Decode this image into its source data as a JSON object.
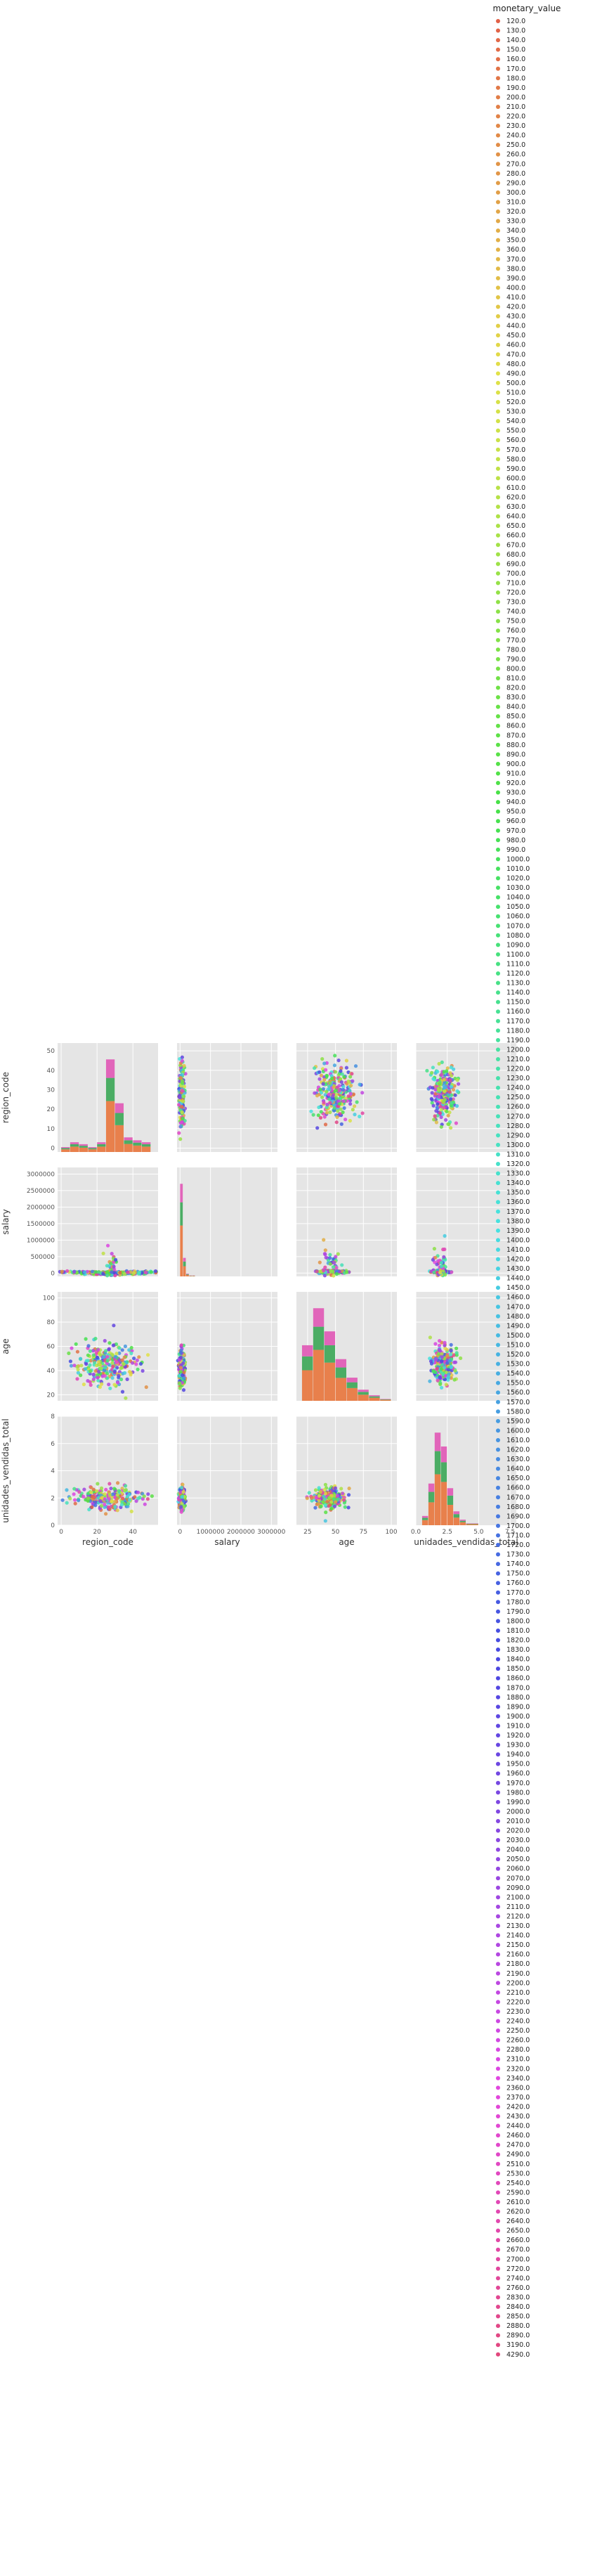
{
  "chart_data": {
    "type": "scatter",
    "title": "",
    "variables": [
      "region_code",
      "salary",
      "age",
      "unidades_vendidas_total"
    ],
    "axes": {
      "region_code": {
        "lim": [
          -2,
          54
        ],
        "ticks": [
          0,
          20,
          40
        ],
        "tick_labels": [
          "0",
          "20",
          "40"
        ],
        "y_ticks": [
          0,
          10,
          20,
          30,
          40,
          50
        ],
        "y_tick_labels": [
          "0",
          "10",
          "20",
          "30",
          "40",
          "50"
        ]
      },
      "salary": {
        "lim": [
          -100000,
          3200000
        ],
        "ticks": [
          0,
          1000000,
          2000000,
          3000000
        ],
        "tick_labels": [
          "0",
          "1000000",
          "2000000",
          "3000000"
        ],
        "y_ticks": [
          0,
          500000,
          1000000,
          1500000,
          2000000,
          2500000,
          3000000
        ],
        "y_tick_labels": [
          "0",
          "500000",
          "1000000",
          "1500000",
          "2000000",
          "2500000",
          "3000000"
        ]
      },
      "age": {
        "lim": [
          15,
          105
        ],
        "ticks": [
          25,
          50,
          75,
          100
        ],
        "tick_labels": [
          "25",
          "50",
          "75",
          "100"
        ],
        "y_ticks": [
          20,
          40,
          60,
          80,
          100
        ],
        "y_tick_labels": [
          "20",
          "40",
          "60",
          "80",
          "100"
        ]
      },
      "unidades_vendidas_total": {
        "lim": [
          0,
          8
        ],
        "ticks": [
          0.0,
          2.5,
          5.0,
          7.5
        ],
        "tick_labels": [
          "0.0",
          "2.5",
          "5.0",
          "7.5"
        ],
        "y_ticks": [
          0,
          2,
          4,
          6,
          8
        ],
        "y_tick_labels": [
          "0",
          "2",
          "4",
          "6",
          "8"
        ]
      }
    },
    "hue": "monetary_value",
    "legend": {
      "title": "monetary_value",
      "placement": "right",
      "entries": [
        "120.0",
        "130.0",
        "140.0",
        "150.0",
        "160.0",
        "170.0",
        "180.0",
        "190.0",
        "200.0",
        "210.0",
        "220.0",
        "230.0",
        "240.0",
        "250.0",
        "260.0",
        "270.0",
        "280.0",
        "290.0",
        "300.0",
        "310.0",
        "320.0",
        "330.0",
        "340.0",
        "350.0",
        "360.0",
        "370.0",
        "380.0",
        "390.0",
        "400.0",
        "410.0",
        "420.0",
        "430.0",
        "440.0",
        "450.0",
        "460.0",
        "470.0",
        "480.0",
        "490.0",
        "500.0",
        "510.0",
        "520.0",
        "530.0",
        "540.0",
        "550.0",
        "560.0",
        "570.0",
        "580.0",
        "590.0",
        "600.0",
        "610.0",
        "620.0",
        "630.0",
        "640.0",
        "650.0",
        "660.0",
        "670.0",
        "680.0",
        "690.0",
        "700.0",
        "710.0",
        "720.0",
        "730.0",
        "740.0",
        "750.0",
        "760.0",
        "770.0",
        "780.0",
        "790.0",
        "800.0",
        "810.0",
        "820.0",
        "830.0",
        "840.0",
        "850.0",
        "860.0",
        "870.0",
        "880.0",
        "890.0",
        "900.0",
        "910.0",
        "920.0",
        "930.0",
        "940.0",
        "950.0",
        "960.0",
        "970.0",
        "980.0",
        "990.0",
        "1000.0",
        "1010.0",
        "1020.0",
        "1030.0",
        "1040.0",
        "1050.0",
        "1060.0",
        "1070.0",
        "1080.0",
        "1090.0",
        "1100.0",
        "1110.0",
        "1120.0",
        "1130.0",
        "1140.0",
        "1150.0",
        "1160.0",
        "1170.0",
        "1180.0",
        "1190.0",
        "1200.0",
        "1210.0",
        "1220.0",
        "1230.0",
        "1240.0",
        "1250.0",
        "1260.0",
        "1270.0",
        "1280.0",
        "1290.0",
        "1300.0",
        "1310.0",
        "1320.0",
        "1330.0",
        "1340.0",
        "1350.0",
        "1360.0",
        "1370.0",
        "1380.0",
        "1390.0",
        "1400.0",
        "1410.0",
        "1420.0",
        "1430.0",
        "1440.0",
        "1450.0",
        "1460.0",
        "1470.0",
        "1480.0",
        "1490.0",
        "1500.0",
        "1510.0",
        "1520.0",
        "1530.0",
        "1540.0",
        "1550.0",
        "1560.0",
        "1570.0",
        "1580.0",
        "1590.0",
        "1600.0",
        "1610.0",
        "1620.0",
        "1630.0",
        "1640.0",
        "1650.0",
        "1660.0",
        "1670.0",
        "1680.0",
        "1690.0",
        "1700.0",
        "1710.0",
        "1720.0",
        "1730.0",
        "1740.0",
        "1750.0",
        "1760.0",
        "1770.0",
        "1780.0",
        "1790.0",
        "1800.0",
        "1810.0",
        "1820.0",
        "1830.0",
        "1840.0",
        "1850.0",
        "1860.0",
        "1870.0",
        "1880.0",
        "1890.0",
        "1900.0",
        "1910.0",
        "1920.0",
        "1930.0",
        "1940.0",
        "1950.0",
        "1960.0",
        "1970.0",
        "1980.0",
        "1990.0",
        "2000.0",
        "2010.0",
        "2020.0",
        "2030.0",
        "2040.0",
        "2050.0",
        "2060.0",
        "2070.0",
        "2090.0",
        "2100.0",
        "2110.0",
        "2120.0",
        "2130.0",
        "2140.0",
        "2150.0",
        "2160.0",
        "2180.0",
        "2190.0",
        "2200.0",
        "2210.0",
        "2220.0",
        "2230.0",
        "2240.0",
        "2250.0",
        "2260.0",
        "2280.0",
        "2310.0",
        "2320.0",
        "2340.0",
        "2360.0",
        "2370.0",
        "2420.0",
        "2430.0",
        "2440.0",
        "2460.0",
        "2470.0",
        "2490.0",
        "2510.0",
        "2530.0",
        "2540.0",
        "2590.0",
        "2610.0",
        "2620.0",
        "2640.0",
        "2650.0",
        "2660.0",
        "2670.0",
        "2700.0",
        "2720.0",
        "2740.0",
        "2760.0",
        "2830.0",
        "2840.0",
        "2850.0",
        "2880.0",
        "2890.0",
        "3190.0",
        "4290.0"
      ]
    },
    "grid": true,
    "palette_note": "husl hue palette",
    "diag_hist": {
      "region_code": {
        "bins": [
          0,
          5,
          10,
          15,
          20,
          25,
          30,
          35,
          40,
          45,
          50
        ],
        "counts": [
          0.05,
          0.1,
          0.08,
          0.05,
          0.1,
          0.95,
          0.5,
          0.15,
          0.12,
          0.1
        ]
      },
      "salary": {
        "bins": [
          0,
          100000,
          200000,
          300000,
          400000,
          500000
        ],
        "counts": [
          1.0,
          0.2,
          0.03,
          0.01,
          0.01
        ]
      },
      "age": {
        "bins": [
          20,
          30,
          40,
          50,
          60,
          70,
          80,
          90,
          100
        ],
        "counts": [
          0.6,
          1.0,
          0.75,
          0.45,
          0.25,
          0.12,
          0.06,
          0.02
        ]
      },
      "unidades_vendidas_total": {
        "bins": [
          0.5,
          1.0,
          1.5,
          2.0,
          2.5,
          3.0,
          3.5,
          4.0,
          5.0
        ],
        "counts": [
          0.1,
          0.45,
          1.0,
          0.85,
          0.4,
          0.15,
          0.06,
          0.02
        ]
      }
    },
    "clusters": {
      "region_code|salary": [
        [
          28,
          0,
          14,
          40000
        ],
        [
          8,
          30000,
          10,
          30000
        ],
        [
          45,
          30000,
          10,
          30000
        ],
        [
          28,
          150000,
          3,
          700000
        ]
      ],
      "region_code|age": [
        [
          26,
          45,
          18,
          18
        ]
      ],
      "region_code|unidades_vendidas_total": [
        [
          26,
          2.0,
          18,
          0.8
        ]
      ],
      "salary|region_code": [
        [
          50000,
          28,
          80000,
          14
        ]
      ],
      "salary|age": [
        [
          60000,
          42,
          90000,
          14
        ]
      ],
      "salary|unidades_vendidas_total": [
        [
          60000,
          2.0,
          90000,
          0.8
        ]
      ],
      "age|region_code": [
        [
          50,
          28,
          18,
          14
        ]
      ],
      "age|salary": [
        [
          45,
          40000,
          12,
          40000
        ],
        [
          45,
          300000,
          10,
          500000
        ]
      ],
      "age|unidades_vendidas_total": [
        [
          45,
          2.0,
          14,
          0.7
        ]
      ],
      "unidades_vendidas_total|region_code": [
        [
          2.2,
          28,
          1.0,
          14
        ]
      ],
      "unidades_vendidas_total|salary": [
        [
          2.0,
          40000,
          0.6,
          40000
        ],
        [
          2.0,
          300000,
          0.5,
          500000
        ]
      ],
      "unidades_vendidas_total|age": [
        [
          2.2,
          45,
          0.9,
          14
        ]
      ]
    }
  }
}
